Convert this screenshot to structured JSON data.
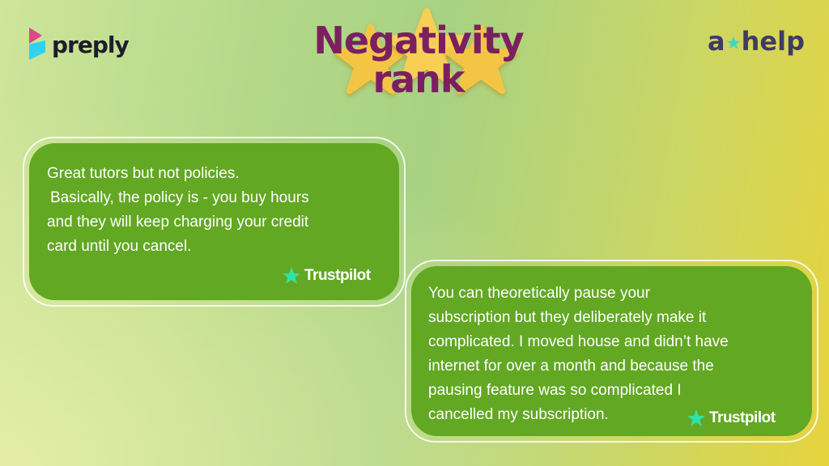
{
  "logos": {
    "left": "preply",
    "right_a": "a",
    "right_help": "help"
  },
  "title": {
    "line1": "Negativity",
    "line2": "rank"
  },
  "reviews": [
    {
      "lines": [
        "Great tutors but not policies.",
        "Basically, the policy is - you buy hours",
        "and they will keep charging your credit",
        "card until you cancel."
      ],
      "source": "Trustpilot"
    },
    {
      "lines": [
        "You can theoretically pause your",
        "subscription but they deliberately make it",
        "complicated. I moved house and didn’t have",
        "internet for over a month and because the",
        "pausing feature was so complicated I",
        "cancelled my subscription."
      ],
      "source": "Trustpilot"
    }
  ],
  "colors": {
    "title": "#7a2060",
    "card": "#62a823",
    "trustpilot_star": "#2fe3a8"
  }
}
